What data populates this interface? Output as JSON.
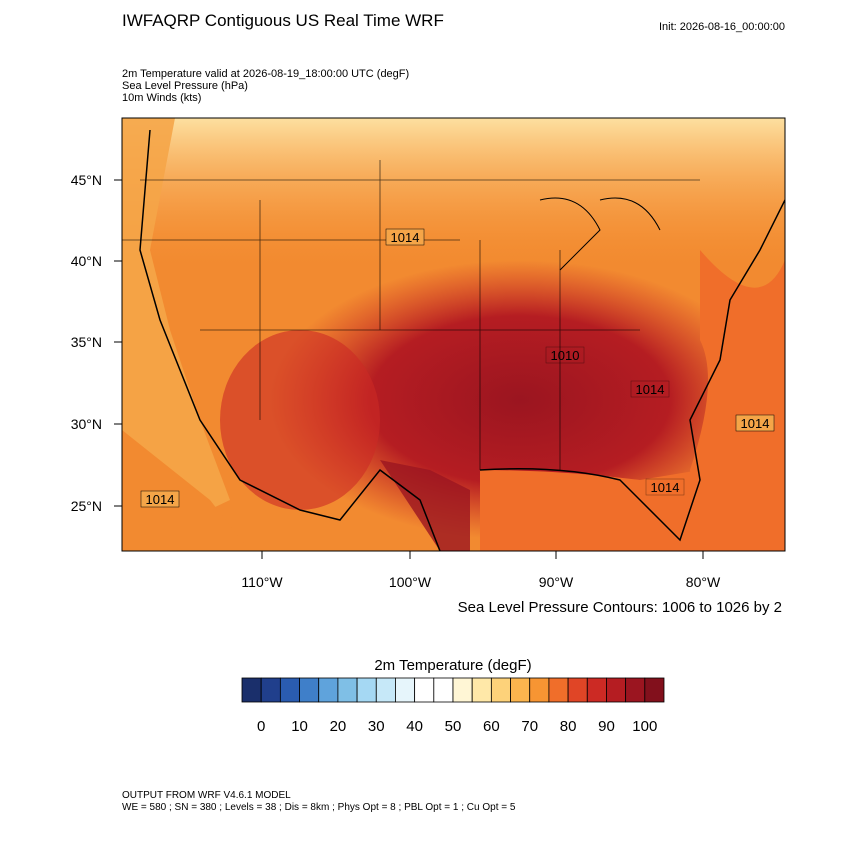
{
  "header": {
    "title": "IWFAQRP Contiguous US Real Time WRF",
    "init": "Init: 2026-08-16_00:00:00",
    "fields": [
      "2m Temperature valid at 2026-08-19_18:00:00 UTC   (degF)",
      "Sea Level Pressure   (hPa)",
      "10m Winds   (kts)"
    ]
  },
  "map": {
    "lat_ticks": [
      "45°N",
      "40°N",
      "35°N",
      "30°N",
      "25°N"
    ],
    "lon_ticks": [
      "110°W",
      "100°W",
      "90°W",
      "80°W"
    ],
    "contour_labels": [
      "1014",
      "1014",
      "1014",
      "1010",
      "1014",
      "1014"
    ],
    "contour_note": "Sea Level Pressure Contours: 1006 to 1026 by 2"
  },
  "colorbar": {
    "title": "2m Temperature  (degF)",
    "ticks": [
      0,
      10,
      20,
      30,
      40,
      50,
      60,
      70,
      80,
      90,
      100
    ],
    "colors": [
      "#1a2f6b",
      "#203f8c",
      "#2a5cb0",
      "#3f7fc9",
      "#5fa3dc",
      "#7fbfe6",
      "#a5d8f3",
      "#c6e8f8",
      "#e6f5fb",
      "#ffffff",
      "#ffffff",
      "#fff6d5",
      "#ffe8a8",
      "#fdd27a",
      "#fbb54e",
      "#f79533",
      "#f06e2a",
      "#e04526",
      "#cc2a24",
      "#b51d22",
      "#9b1520",
      "#82101c"
    ]
  },
  "footer": [
    "OUTPUT FROM WRF V4.6.1 MODEL",
    "WE = 580 ; SN = 380 ; Levels = 38 ; Dis = 8km ; Phys Opt = 8 ; PBL Opt = 1 ; Cu Opt = 5"
  ]
}
